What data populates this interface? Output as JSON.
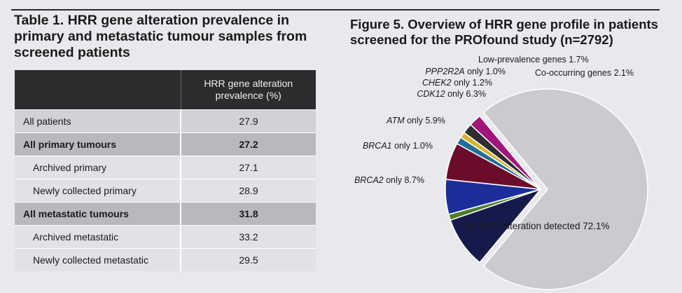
{
  "table": {
    "title": "Table 1. HRR gene alteration prevalence in primary and metastatic tumour samples from screened patients",
    "header": {
      "col1": "",
      "col2": "HRR gene alteration prevalence (%)"
    },
    "rows": [
      {
        "label": "All patients",
        "value": "27.9",
        "level": 0
      },
      {
        "label": "All primary tumours",
        "value": "27.2",
        "level": 1
      },
      {
        "label": "Archived primary",
        "value": "27.1",
        "level": 2
      },
      {
        "label": "Newly collected primary",
        "value": "28.9",
        "level": 2
      },
      {
        "label": "All metastatic tumours",
        "value": "31.8",
        "level": 1
      },
      {
        "label": "Archived metastatic",
        "value": "33.2",
        "level": 2
      },
      {
        "label": "Newly collected metastatic",
        "value": "29.5",
        "level": 2
      }
    ]
  },
  "chart_data": {
    "type": "pie",
    "title": "Figure 5. Overview of HRR gene profile in patients screened for the PROfound study (n=2792)",
    "slices": [
      {
        "gene": "No HRR alteration detected",
        "suffix": "",
        "value": 72.1,
        "color": "#ccc9cf",
        "italic": false,
        "exploded": false
      },
      {
        "gene": "BRCA2",
        "suffix": " only",
        "value": 8.7,
        "color": "#161a4b",
        "italic": true,
        "exploded": true
      },
      {
        "gene": "BRCA1",
        "suffix": " only",
        "value": 1.0,
        "color": "#4a7e2a",
        "italic": true,
        "exploded": true
      },
      {
        "gene": "ATM",
        "suffix": " only",
        "value": 5.9,
        "color": "#1c2d9a",
        "italic": true,
        "exploded": true
      },
      {
        "gene": "CDK12",
        "suffix": " only",
        "value": 6.3,
        "color": "#6b0d2a",
        "italic": true,
        "exploded": true
      },
      {
        "gene": "CHEK2",
        "suffix": " only",
        "value": 1.2,
        "color": "#1f6e97",
        "italic": true,
        "exploded": true
      },
      {
        "gene": "PPP2R2A",
        "suffix": " only",
        "value": 1.0,
        "color": "#d9b32c",
        "italic": true,
        "exploded": true
      },
      {
        "gene": "Low-prevalence genes",
        "suffix": "",
        "value": 1.7,
        "color": "#2f2d33",
        "italic": false,
        "exploded": true
      },
      {
        "gene": "Co-occurring genes",
        "suffix": "",
        "value": 2.1,
        "color": "#a11578",
        "italic": false,
        "exploded": true
      }
    ]
  }
}
